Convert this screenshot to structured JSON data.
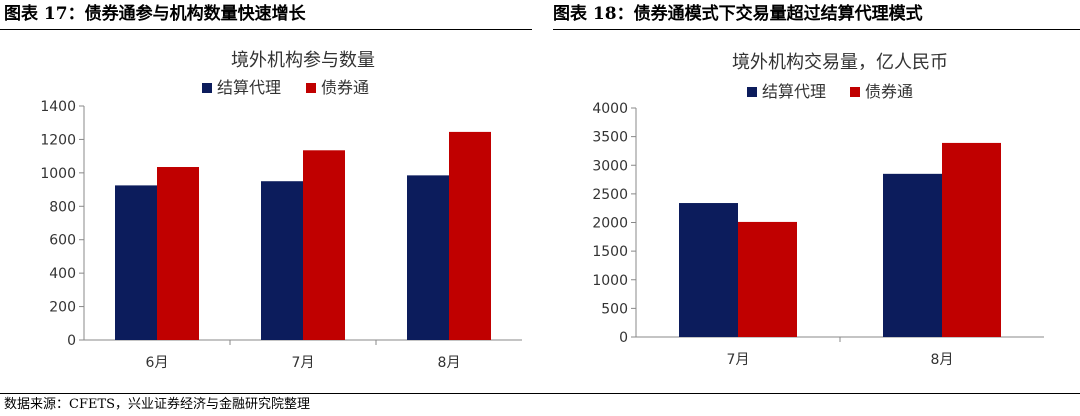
{
  "panels": {
    "left_title": "图表 17：债券通参与机构数量快速增长",
    "right_title": "图表 18：债券通模式下交易量超过结算代理模式"
  },
  "source": "数据来源：CFETS，兴业证券经济与金融研究院整理",
  "colors": {
    "settlement_agent": "#0c1c5c",
    "bond_connect": "#c00000"
  },
  "chart_data": [
    {
      "type": "bar",
      "title": "境外机构参与数量",
      "categories": [
        "6月",
        "7月",
        "8月"
      ],
      "series": [
        {
          "name": "结算代理",
          "color": "#0c1c5c",
          "values": [
            925,
            950,
            985
          ]
        },
        {
          "name": "债券通",
          "color": "#c00000",
          "values": [
            1035,
            1135,
            1245
          ]
        }
      ],
      "ylim": [
        0,
        1400
      ],
      "yticks": [
        0,
        200,
        400,
        600,
        800,
        1000,
        1200,
        1400
      ],
      "legend_position": "top",
      "grid": false
    },
    {
      "type": "bar",
      "title": "境外机构交易量，亿人民币",
      "categories": [
        "7月",
        "8月"
      ],
      "series": [
        {
          "name": "结算代理",
          "color": "#0c1c5c",
          "values": [
            2340,
            2850
          ]
        },
        {
          "name": "债券通",
          "color": "#c00000",
          "values": [
            2010,
            3390
          ]
        }
      ],
      "ylim": [
        0,
        4000
      ],
      "yticks": [
        0,
        500,
        1000,
        1500,
        2000,
        2500,
        3000,
        3500,
        4000
      ],
      "legend_position": "top",
      "grid": false
    }
  ]
}
